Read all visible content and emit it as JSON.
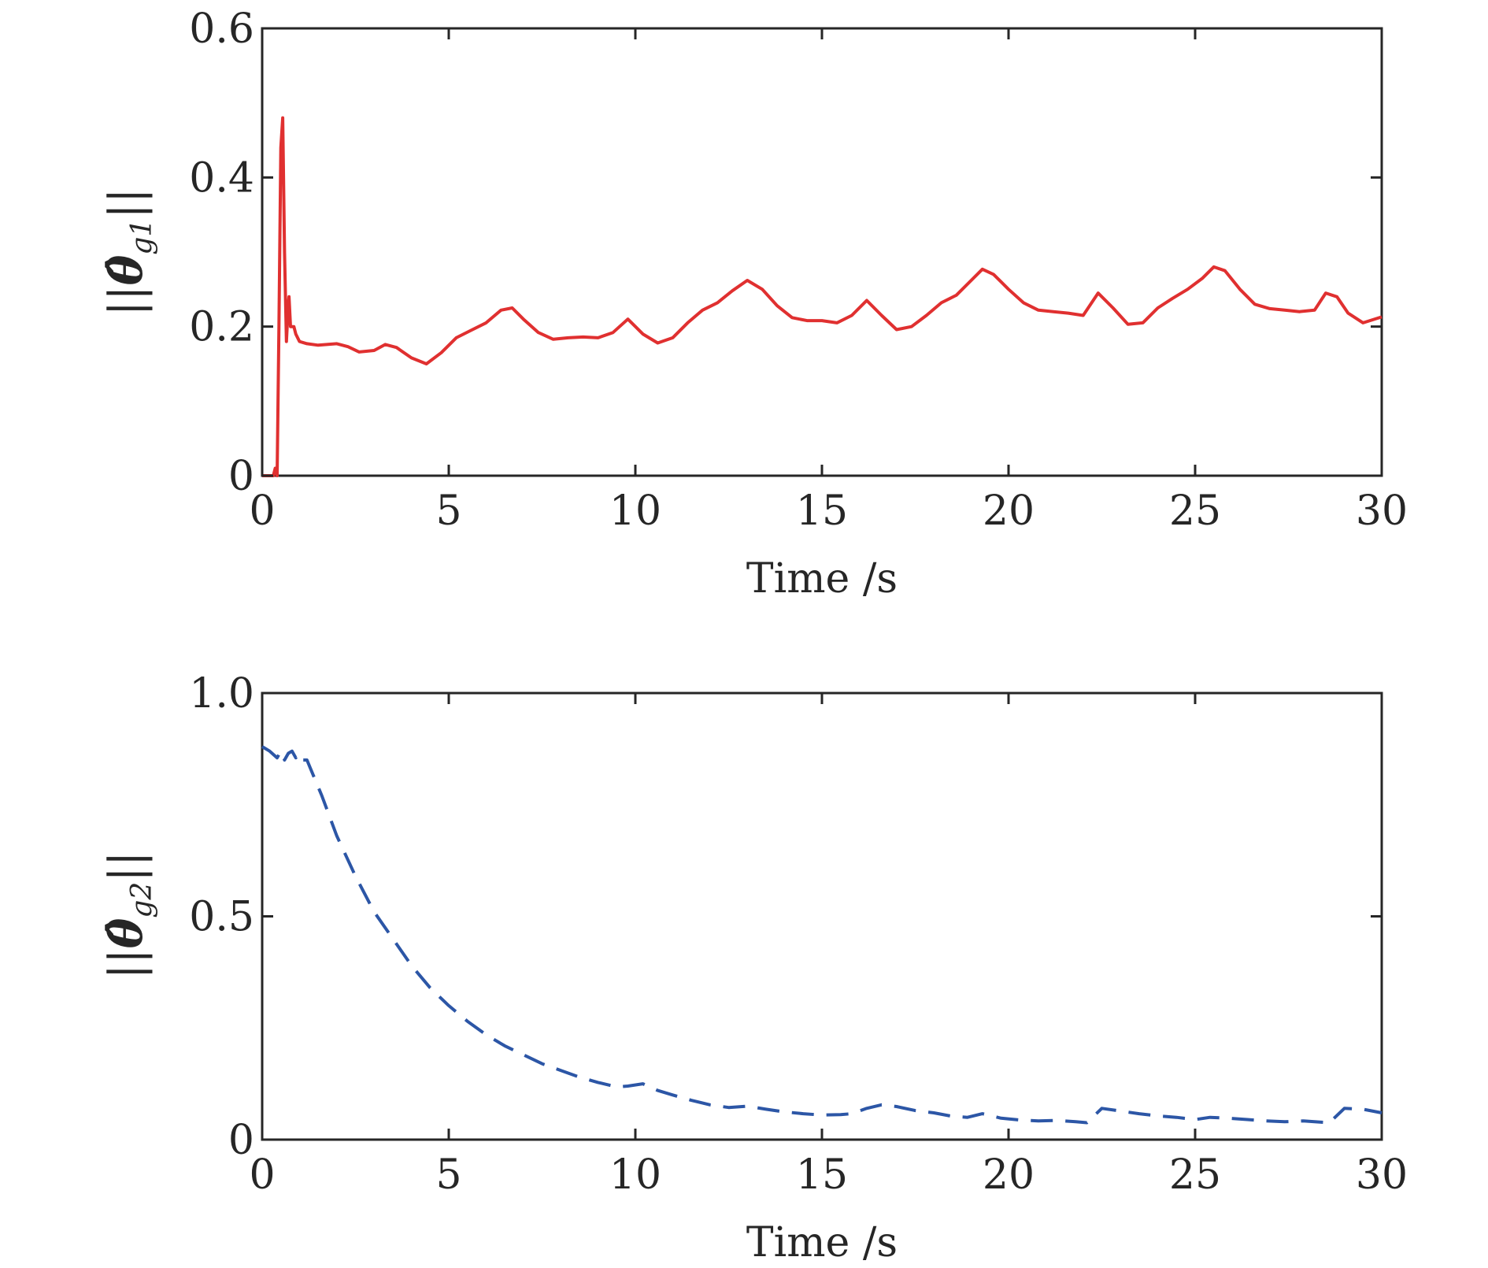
{
  "chart_data": [
    {
      "type": "line",
      "xlabel": "Time /s",
      "ylabel": "||θ̂g1||",
      "ylabel_parts": {
        "bars": "||",
        "symbol": "θ̂",
        "subscript": "g1"
      },
      "xlim": [
        0,
        30
      ],
      "ylim": [
        0,
        0.6
      ],
      "xticks": [
        0,
        5,
        10,
        15,
        20,
        25,
        30
      ],
      "xtick_labels": [
        "0",
        "5",
        "10",
        "15",
        "20",
        "25",
        "30"
      ],
      "yticks": [
        0,
        0.2,
        0.4,
        0.6
      ],
      "ytick_labels": [
        "0",
        "0.2",
        "0.4",
        "0.6"
      ],
      "grid": false,
      "series": [
        {
          "color": "#e03030",
          "line_style": "solid",
          "x": [
            0,
            0.3,
            0.35,
            0.4,
            0.45,
            0.5,
            0.55,
            0.6,
            0.65,
            0.7,
            0.72,
            0.76,
            0.8,
            0.85,
            0.9,
            1.0,
            1.2,
            1.5,
            2.0,
            2.3,
            2.6,
            3.0,
            3.3,
            3.6,
            4.0,
            4.4,
            4.8,
            5.2,
            5.6,
            6.0,
            6.4,
            6.7,
            7.0,
            7.4,
            7.8,
            8.2,
            8.6,
            9.0,
            9.4,
            9.8,
            10.2,
            10.6,
            11.0,
            11.4,
            11.8,
            12.2,
            12.6,
            13.0,
            13.4,
            13.8,
            14.2,
            14.6,
            15.0,
            15.4,
            15.8,
            16.2,
            16.6,
            17.0,
            17.4,
            17.8,
            18.2,
            18.6,
            19.0,
            19.3,
            19.6,
            20.0,
            20.4,
            20.8,
            21.2,
            21.6,
            22.0,
            22.4,
            22.8,
            23.2,
            23.6,
            24.0,
            24.4,
            24.8,
            25.2,
            25.5,
            25.8,
            26.2,
            26.6,
            27.0,
            27.4,
            27.8,
            28.2,
            28.5,
            28.8,
            29.1,
            29.5,
            30.0
          ],
          "y": [
            0,
            0,
            0.01,
            0,
            0.2,
            0.44,
            0.48,
            0.3,
            0.18,
            0.23,
            0.24,
            0.2,
            0.2,
            0.2,
            0.19,
            0.18,
            0.177,
            0.175,
            0.177,
            0.173,
            0.166,
            0.168,
            0.176,
            0.172,
            0.158,
            0.15,
            0.165,
            0.185,
            0.195,
            0.205,
            0.222,
            0.225,
            0.21,
            0.192,
            0.183,
            0.185,
            0.186,
            0.185,
            0.192,
            0.21,
            0.19,
            0.178,
            0.185,
            0.205,
            0.222,
            0.232,
            0.248,
            0.262,
            0.25,
            0.228,
            0.212,
            0.208,
            0.208,
            0.205,
            0.215,
            0.235,
            0.215,
            0.196,
            0.2,
            0.215,
            0.232,
            0.242,
            0.262,
            0.277,
            0.27,
            0.25,
            0.232,
            0.222,
            0.22,
            0.218,
            0.215,
            0.245,
            0.225,
            0.203,
            0.205,
            0.225,
            0.238,
            0.25,
            0.265,
            0.28,
            0.275,
            0.25,
            0.23,
            0.224,
            0.222,
            0.22,
            0.222,
            0.245,
            0.24,
            0.218,
            0.205,
            0.213
          ]
        }
      ]
    },
    {
      "type": "line",
      "xlabel": "Time /s",
      "ylabel": "||θ̂g2||",
      "ylabel_parts": {
        "bars": "||",
        "symbol": "θ̂",
        "subscript": "g2"
      },
      "xlim": [
        0,
        30
      ],
      "ylim": [
        0,
        1.0
      ],
      "xticks": [
        0,
        5,
        10,
        15,
        20,
        25,
        30
      ],
      "xtick_labels": [
        "0",
        "5",
        "10",
        "15",
        "20",
        "25",
        "30"
      ],
      "yticks": [
        0,
        0.5,
        1.0
      ],
      "ytick_labels": [
        "0",
        "0.5",
        "1.0"
      ],
      "grid": false,
      "series": [
        {
          "color": "#2c56a6",
          "line_style": "dashed",
          "x": [
            0,
            0.2,
            0.4,
            0.5,
            0.6,
            0.7,
            0.8,
            0.9,
            1.0,
            1.1,
            1.2,
            1.3,
            1.6,
            2.0,
            2.5,
            3.0,
            3.5,
            4.0,
            4.5,
            5.0,
            5.5,
            6.0,
            6.5,
            7.0,
            7.5,
            8.0,
            8.5,
            9.0,
            9.5,
            9.8,
            10.2,
            10.6,
            11.0,
            11.5,
            12.0,
            12.5,
            13.0,
            13.5,
            14.0,
            14.5,
            15.0,
            15.5,
            15.8,
            16.2,
            16.6,
            17.0,
            17.5,
            18.0,
            18.5,
            18.9,
            19.3,
            19.8,
            20.3,
            20.8,
            21.3,
            21.8,
            22.1,
            22.5,
            23.0,
            23.5,
            24.0,
            24.5,
            25.0,
            25.4,
            25.9,
            26.4,
            26.9,
            27.4,
            27.9,
            28.2,
            28.6,
            29.0,
            29.5,
            30.0
          ],
          "y": [
            0.88,
            0.87,
            0.855,
            0.87,
            0.85,
            0.865,
            0.87,
            0.855,
            0.865,
            0.85,
            0.85,
            0.83,
            0.77,
            0.68,
            0.59,
            0.51,
            0.45,
            0.39,
            0.34,
            0.3,
            0.265,
            0.235,
            0.21,
            0.19,
            0.17,
            0.155,
            0.14,
            0.128,
            0.118,
            0.12,
            0.125,
            0.11,
            0.1,
            0.088,
            0.078,
            0.072,
            0.075,
            0.068,
            0.062,
            0.058,
            0.055,
            0.056,
            0.058,
            0.07,
            0.078,
            0.074,
            0.065,
            0.06,
            0.052,
            0.05,
            0.058,
            0.048,
            0.044,
            0.042,
            0.043,
            0.04,
            0.038,
            0.07,
            0.064,
            0.058,
            0.053,
            0.05,
            0.045,
            0.05,
            0.048,
            0.045,
            0.042,
            0.04,
            0.042,
            0.04,
            0.038,
            0.07,
            0.068,
            0.06
          ]
        }
      ]
    }
  ]
}
